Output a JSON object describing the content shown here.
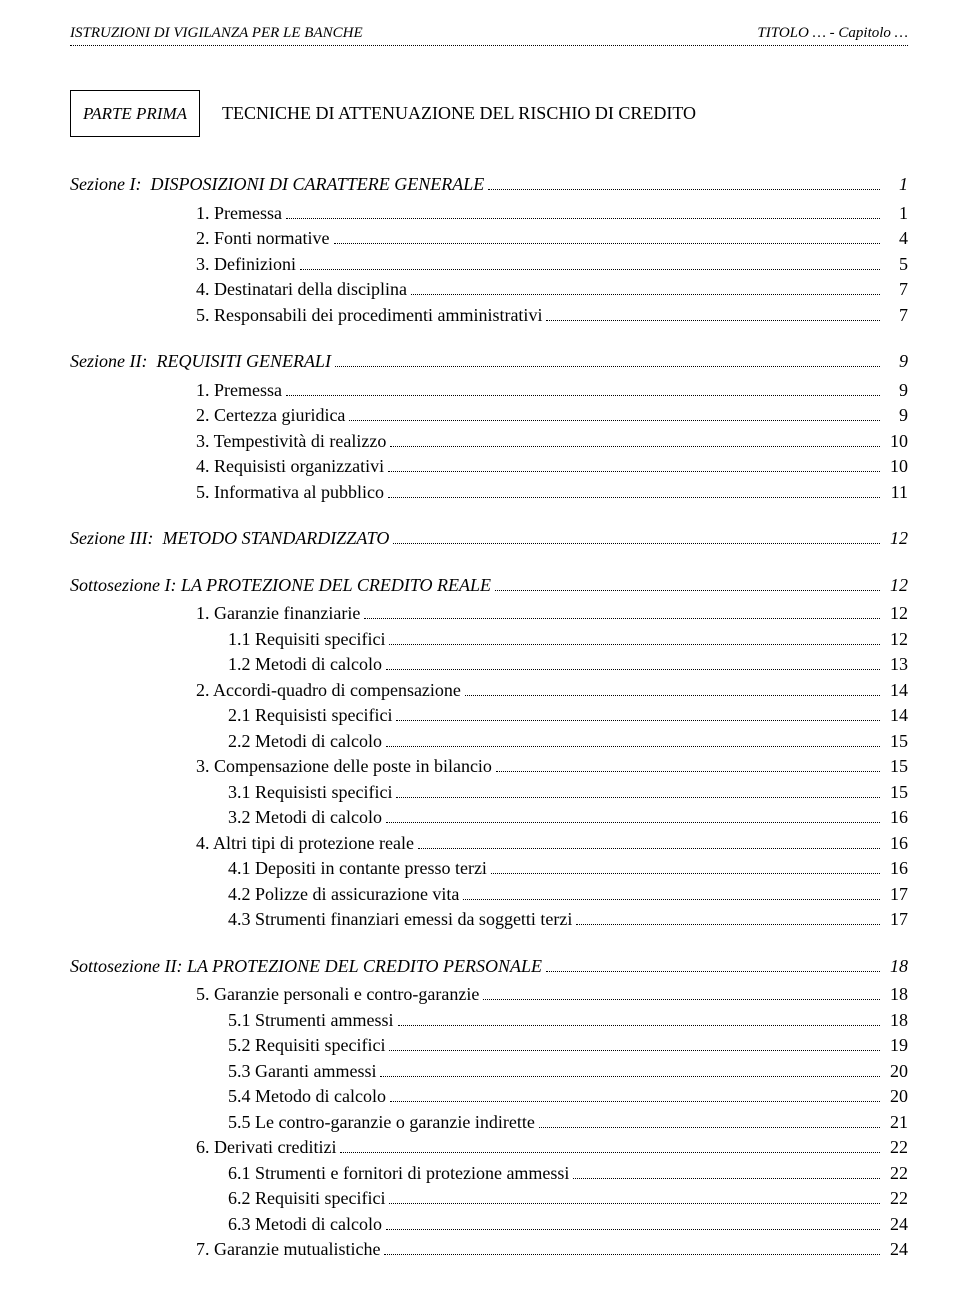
{
  "header": {
    "left": "ISTRUZIONI DI VIGILANZA PER LE BANCHE",
    "right": "TITOLO … - Capitolo …"
  },
  "parte": {
    "box": "PARTE PRIMA",
    "title": "TECNICHE DI ATTENUAZIONE DEL RISCHIO DI CREDITO"
  },
  "toc": [
    {
      "type": "section",
      "label": "Sezione I:",
      "text": "DISPOSIZIONI DI CARATTERE GENERALE",
      "page": "1"
    },
    {
      "type": "num1",
      "text": "1. Premessa",
      "page": "1"
    },
    {
      "type": "num1",
      "text": "2. Fonti normative",
      "page": "4"
    },
    {
      "type": "num1",
      "text": "3. Definizioni",
      "page": "5"
    },
    {
      "type": "num1",
      "text": "4. Destinatari della disciplina",
      "page": "7"
    },
    {
      "type": "num1",
      "text": "5. Responsabili dei procedimenti amministrativi",
      "page": "7"
    },
    {
      "type": "section",
      "label": "Sezione II:",
      "text": "REQUISITI GENERALI",
      "page": "9"
    },
    {
      "type": "num1",
      "text": "1. Premessa",
      "page": "9"
    },
    {
      "type": "num1",
      "text": "2. Certezza giuridica",
      "page": "9"
    },
    {
      "type": "num1",
      "text": "3. Tempestività di realizzo",
      "page": "10"
    },
    {
      "type": "num1",
      "text": "4. Requisisti organizzativi",
      "page": "10"
    },
    {
      "type": "num1",
      "text": "5. Informativa al pubblico",
      "page": "11"
    },
    {
      "type": "section",
      "label": "Sezione III:",
      "text": "METODO STANDARDIZZATO",
      "page": "12"
    },
    {
      "type": "sotto",
      "text": "Sottosezione I: LA PROTEZIONE DEL CREDITO REALE",
      "page": "12"
    },
    {
      "type": "num1",
      "text": "1. Garanzie finanziarie",
      "page": "12"
    },
    {
      "type": "num2",
      "text": "1.1 Requisiti specifici",
      "page": "12"
    },
    {
      "type": "num2",
      "text": "1.2 Metodi di calcolo",
      "page": "13"
    },
    {
      "type": "num1",
      "text": "2. Accordi-quadro di compensazione",
      "page": "14"
    },
    {
      "type": "num2",
      "text": "2.1 Requisisti specifici",
      "page": "14"
    },
    {
      "type": "num2",
      "text": "2.2 Metodi di calcolo",
      "page": "15"
    },
    {
      "type": "num1",
      "text": "3. Compensazione delle poste in bilancio",
      "page": "15"
    },
    {
      "type": "num2",
      "text": "3.1 Requisisti specifici",
      "page": "15"
    },
    {
      "type": "num2",
      "text": "3.2 Metodi di calcolo",
      "page": "16"
    },
    {
      "type": "num1",
      "text": "4. Altri tipi di protezione reale",
      "page": "16"
    },
    {
      "type": "num2",
      "text": "4.1 Depositi in contante presso terzi",
      "page": "16"
    },
    {
      "type": "num2",
      "text": "4.2 Polizze di assicurazione vita",
      "page": "17"
    },
    {
      "type": "num2",
      "text": "4.3 Strumenti finanziari emessi da soggetti terzi",
      "page": "17"
    },
    {
      "type": "sotto",
      "text": "Sottosezione II: LA PROTEZIONE DEL CREDITO PERSONALE",
      "page": "18"
    },
    {
      "type": "num1",
      "text": "5. Garanzie personali e contro-garanzie",
      "page": "18"
    },
    {
      "type": "num2",
      "text": "5.1 Strumenti ammessi",
      "page": "18"
    },
    {
      "type": "num2",
      "text": "5.2 Requisiti specifici",
      "page": "19"
    },
    {
      "type": "num2",
      "text": "5.3 Garanti ammessi",
      "page": "20"
    },
    {
      "type": "num2",
      "text": "5.4 Metodo di calcolo",
      "page": "20"
    },
    {
      "type": "num2",
      "text": "5.5 Le contro-garanzie o garanzie indirette",
      "page": "21"
    },
    {
      "type": "num1",
      "text": "6. Derivati creditizi",
      "page": "22"
    },
    {
      "type": "num2",
      "text": "6.1 Strumenti e fornitori di protezione ammessi",
      "page": "22"
    },
    {
      "type": "num2",
      "text": "6.2 Requisiti specifici",
      "page": "22"
    },
    {
      "type": "num2",
      "text": "6.3 Metodi di calcolo",
      "page": "24"
    },
    {
      "type": "num1",
      "text": "7. Garanzie mutualistiche",
      "page": "24"
    }
  ]
}
